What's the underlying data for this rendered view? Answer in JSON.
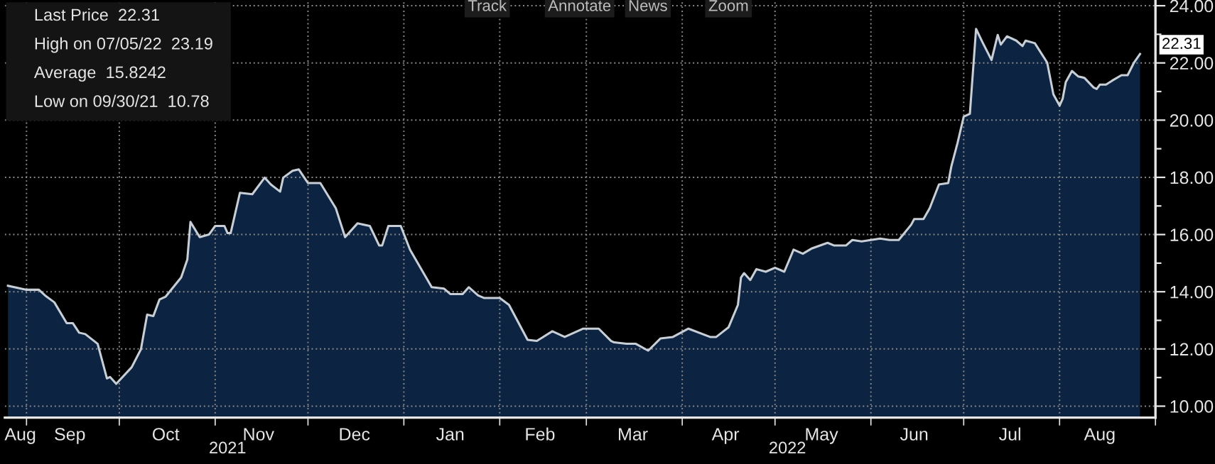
{
  "chart_data": {
    "type": "area",
    "annotations": [
      "Last Price  22.31",
      "High on 07/05/22  23.19",
      "Average  15.8242",
      "Low on 09/30/21  10.78",
      "Track",
      "Annotate",
      "News",
      "Zoom",
      {
        "text": "22.31",
        "x": "2022-08-27",
        "y": 22.31
      }
    ],
    "series": [
      {
        "color": "#0c2342",
        "x": [
          "2021-08-26",
          "2021-09-01",
          "2021-09-05",
          "2021-09-07",
          "2021-09-10",
          "2021-09-14",
          "2021-09-16",
          "2021-09-18",
          "2021-09-20",
          "2021-09-24",
          "2021-09-27",
          "2021-09-28",
          "2021-09-30",
          "2021-10-05",
          "2021-10-08",
          "2021-10-10",
          "2021-10-12",
          "2021-10-14",
          "2021-10-16",
          "2021-10-21",
          "2021-10-23",
          "2021-10-24",
          "2021-10-27",
          "2021-10-30",
          "2021-11-01",
          "2021-11-04",
          "2021-11-05",
          "2021-11-06",
          "2021-11-09",
          "2021-11-13",
          "2021-11-17",
          "2021-11-19",
          "2021-11-22",
          "2021-11-23",
          "2021-11-26",
          "2021-11-28",
          "2021-12-01",
          "2021-12-05",
          "2021-12-10",
          "2021-12-13",
          "2021-12-17",
          "2021-12-21",
          "2021-12-24",
          "2021-12-25",
          "2021-12-27",
          "2021-12-31",
          "2022-01-03",
          "2022-01-10",
          "2022-01-14",
          "2022-01-16",
          "2022-01-20",
          "2022-01-22",
          "2022-01-25",
          "2022-01-27",
          "2022-02-01",
          "2022-02-04",
          "2022-02-10",
          "2022-02-13",
          "2022-02-18",
          "2022-02-22",
          "2022-02-28",
          "2022-03-05",
          "2022-03-09",
          "2022-03-10",
          "2022-03-14",
          "2022-03-17",
          "2022-03-21",
          "2022-03-25",
          "2022-03-29",
          "2022-04-03",
          "2022-04-10",
          "2022-04-12",
          "2022-04-16",
          "2022-04-19",
          "2022-04-20",
          "2022-04-21",
          "2022-04-23",
          "2022-04-25",
          "2022-04-28",
          "2022-05-01",
          "2022-05-04",
          "2022-05-07",
          "2022-05-10",
          "2022-05-13",
          "2022-05-18",
          "2022-05-20",
          "2022-05-24",
          "2022-05-26",
          "2022-05-29",
          "2022-06-04",
          "2022-06-07",
          "2022-06-10",
          "2022-06-14",
          "2022-06-15",
          "2022-06-18",
          "2022-06-20",
          "2022-06-23",
          "2022-06-26",
          "2022-06-27",
          "2022-06-29",
          "2022-07-01",
          "2022-07-03",
          "2022-07-05",
          "2022-07-07",
          "2022-07-10",
          "2022-07-12",
          "2022-07-13",
          "2022-07-15",
          "2022-07-18",
          "2022-07-20",
          "2022-07-21",
          "2022-07-24",
          "2022-07-28",
          "2022-07-30",
          "2022-08-01",
          "2022-08-02",
          "2022-08-03",
          "2022-08-05",
          "2022-08-07",
          "2022-08-09",
          "2022-08-12",
          "2022-08-13",
          "2022-08-14",
          "2022-08-16",
          "2022-08-18",
          "2022-08-21",
          "2022-08-23",
          "2022-08-25",
          "2022-08-27"
        ],
        "values": [
          14.21,
          14.07,
          14.07,
          13.87,
          13.63,
          12.9,
          12.9,
          12.57,
          12.52,
          12.18,
          10.97,
          11.02,
          10.78,
          11.36,
          11.99,
          13.2,
          13.15,
          13.73,
          13.83,
          14.5,
          15.13,
          16.44,
          15.91,
          16.0,
          16.3,
          16.3,
          16.05,
          16.05,
          17.46,
          17.41,
          17.99,
          17.75,
          17.5,
          17.99,
          18.23,
          18.28,
          17.8,
          17.8,
          16.92,
          15.91,
          16.39,
          16.3,
          15.62,
          15.62,
          16.3,
          16.3,
          15.47,
          14.16,
          14.11,
          13.92,
          13.92,
          14.16,
          13.87,
          13.78,
          13.78,
          13.54,
          12.32,
          12.28,
          12.62,
          12.42,
          12.71,
          12.71,
          12.28,
          12.23,
          12.18,
          12.18,
          11.94,
          12.37,
          12.42,
          12.71,
          12.42,
          12.42,
          12.76,
          13.54,
          14.5,
          14.65,
          14.41,
          14.79,
          14.7,
          14.84,
          14.7,
          15.47,
          15.33,
          15.52,
          15.71,
          15.62,
          15.62,
          15.81,
          15.76,
          15.86,
          15.81,
          15.81,
          16.34,
          16.54,
          16.54,
          16.92,
          17.75,
          17.8,
          18.38,
          19.2,
          20.12,
          20.22,
          23.19,
          22.74,
          22.1,
          22.98,
          22.64,
          22.93,
          22.78,
          22.59,
          22.78,
          22.69,
          22.01,
          20.9,
          20.51,
          20.75,
          21.33,
          21.72,
          21.53,
          21.48,
          21.14,
          21.09,
          21.24,
          21.24,
          21.38,
          21.57,
          21.57,
          22.0,
          22.31
        ]
      }
    ],
    "xlim": [
      "2021-08-25",
      "2022-09-01"
    ],
    "xticks": [
      {
        "value": "2021-08-30",
        "label": "Aug"
      },
      {
        "value": "2021-09-01",
        "label": null
      },
      {
        "value": "2021-09-15",
        "label": "Sep"
      },
      {
        "value": "2021-10-01",
        "label": null
      },
      {
        "value": "2021-10-16",
        "label": "Oct"
      },
      {
        "value": "2021-11-01",
        "label": null
      },
      {
        "value": "2021-11-15",
        "label": "Nov"
      },
      {
        "value": "2021-12-01",
        "label": null
      },
      {
        "value": "2021-12-16",
        "label": "Dec"
      },
      {
        "value": "2022-01-01",
        "label": null
      },
      {
        "value": "2022-01-16",
        "label": "Jan"
      },
      {
        "value": "2022-02-01",
        "label": null
      },
      {
        "value": "2022-02-14",
        "label": "Feb"
      },
      {
        "value": "2022-03-01",
        "label": null
      },
      {
        "value": "2022-03-16",
        "label": "Mar"
      },
      {
        "value": "2022-04-01",
        "label": null
      },
      {
        "value": "2022-04-15",
        "label": "Apr"
      },
      {
        "value": "2022-05-01",
        "label": null
      },
      {
        "value": "2022-05-16",
        "label": "May"
      },
      {
        "value": "2022-06-01",
        "label": null
      },
      {
        "value": "2022-06-15",
        "label": "Jun"
      },
      {
        "value": "2022-07-01",
        "label": null
      },
      {
        "value": "2022-07-16",
        "label": "Jul"
      },
      {
        "value": "2022-08-01",
        "label": null
      },
      {
        "value": "2022-08-14",
        "label": "Aug"
      },
      {
        "value": "2022-09-01",
        "label": null
      }
    ],
    "x2lim": [
      "2021-08-25",
      "2022-09-01"
    ],
    "x2ticks": [
      {
        "value": "2021-11-05",
        "label": "2021"
      },
      {
        "value": "2022-05-05",
        "label": "2022"
      }
    ],
    "ylim": [
      9.6,
      24.2
    ],
    "yticks": [
      {
        "value": 10,
        "label": "10.00"
      },
      {
        "value": 11,
        "label": null
      },
      {
        "value": 12,
        "label": "12.00"
      },
      {
        "value": 13,
        "label": null
      },
      {
        "value": 14,
        "label": "14.00"
      },
      {
        "value": 15,
        "label": null
      },
      {
        "value": 16,
        "label": "16.00"
      },
      {
        "value": 17,
        "label": null
      },
      {
        "value": 18,
        "label": "18.00"
      },
      {
        "value": 19,
        "label": null
      },
      {
        "value": 20,
        "label": "20.00"
      },
      {
        "value": 21,
        "label": null
      },
      {
        "value": 22,
        "label": "22.00"
      },
      {
        "value": 23,
        "label": null
      },
      {
        "value": 24,
        "label": "24.00"
      }
    ],
    "grid": true
  }
}
